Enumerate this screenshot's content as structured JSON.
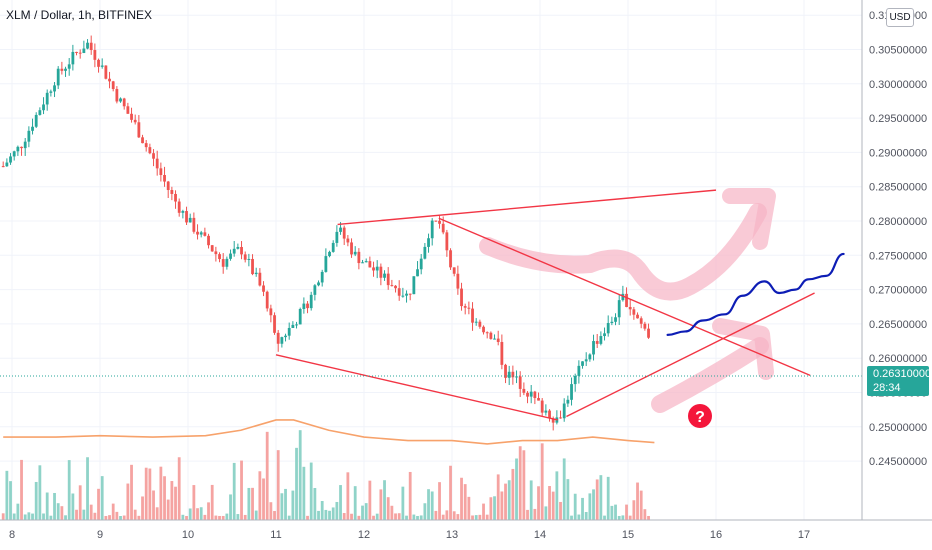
{
  "header": {
    "symbol_title": "XLM / Dollar, 1h, BITFINEX"
  },
  "price_axis": {
    "currency": "USD",
    "last_price": "0.26310000",
    "countdown": "28:34"
  },
  "annotations": {
    "question_mark": "?"
  },
  "colors": {
    "up": "#26a69a",
    "down": "#ef5350",
    "up_volume": "#8fd3c8",
    "down_volume": "#f5a3a1",
    "ma": "#f7a26b",
    "trendline": "#f23645",
    "projection": "#0d1db5",
    "arrow": "#f7b4c4"
  },
  "chart_data": {
    "type": "candlestick",
    "title": "XLM / Dollar, 1h, BITFINEX",
    "x_ticks": [
      "8",
      "9",
      "10",
      "11",
      "12",
      "13",
      "14",
      "15",
      "16",
      "17"
    ],
    "y_ticks": [
      "0.24500000",
      "0.25000000",
      "0.25500000",
      "0.26000000",
      "0.26500000",
      "0.27000000",
      "0.27500000",
      "0.28000000",
      "0.28500000",
      "0.29000000",
      "0.29500000",
      "0.30000000",
      "0.30500000",
      "0.31000000"
    ],
    "ylim": [
      0.2445,
      0.3115
    ],
    "close_path": [
      [
        7.9,
        0.288
      ],
      [
        8.1,
        0.291
      ],
      [
        8.3,
        0.296
      ],
      [
        8.5,
        0.301
      ],
      [
        8.7,
        0.304
      ],
      [
        8.85,
        0.306
      ],
      [
        9.0,
        0.303
      ],
      [
        9.2,
        0.298
      ],
      [
        9.4,
        0.294
      ],
      [
        9.6,
        0.289
      ],
      [
        9.8,
        0.284
      ],
      [
        10.0,
        0.28
      ],
      [
        10.2,
        0.277
      ],
      [
        10.4,
        0.274
      ],
      [
        10.6,
        0.276
      ],
      [
        10.8,
        0.271
      ],
      [
        10.9,
        0.268
      ],
      [
        11.0,
        0.262
      ],
      [
        11.2,
        0.265
      ],
      [
        11.4,
        0.269
      ],
      [
        11.6,
        0.276
      ],
      [
        11.7,
        0.279
      ],
      [
        11.9,
        0.275
      ],
      [
        12.1,
        0.273
      ],
      [
        12.3,
        0.271
      ],
      [
        12.5,
        0.269
      ],
      [
        12.6,
        0.273
      ],
      [
        12.75,
        0.279
      ],
      [
        12.85,
        0.28
      ],
      [
        12.95,
        0.275
      ],
      [
        13.1,
        0.268
      ],
      [
        13.3,
        0.265
      ],
      [
        13.5,
        0.263
      ],
      [
        13.6,
        0.258
      ],
      [
        13.8,
        0.256
      ],
      [
        14.0,
        0.253
      ],
      [
        14.2,
        0.251
      ],
      [
        14.4,
        0.257
      ],
      [
        14.6,
        0.262
      ],
      [
        14.8,
        0.265
      ],
      [
        14.95,
        0.269
      ],
      [
        15.1,
        0.266
      ],
      [
        15.25,
        0.2631
      ]
    ],
    "volume_ma_path": [
      [
        7.9,
        0.2485
      ],
      [
        8.5,
        0.2485
      ],
      [
        9.0,
        0.2487
      ],
      [
        9.6,
        0.2485
      ],
      [
        10.2,
        0.2487
      ],
      [
        10.6,
        0.2495
      ],
      [
        11.0,
        0.251
      ],
      [
        11.2,
        0.251
      ],
      [
        11.6,
        0.2495
      ],
      [
        12.0,
        0.2485
      ],
      [
        12.5,
        0.248
      ],
      [
        13.0,
        0.248
      ],
      [
        13.4,
        0.2475
      ],
      [
        13.8,
        0.248
      ],
      [
        14.2,
        0.248
      ],
      [
        14.6,
        0.2485
      ],
      [
        15.0,
        0.248
      ],
      [
        15.3,
        0.2477
      ]
    ],
    "trendlines": [
      {
        "from": [
          11.7,
          0.2795
        ],
        "to": [
          16.0,
          0.2845
        ]
      },
      {
        "from": [
          12.85,
          0.2804
        ],
        "to": [
          17.07,
          0.2575
        ]
      },
      {
        "from": [
          11.0,
          0.2605
        ],
        "to": [
          14.2,
          0.251
        ]
      },
      {
        "from": [
          14.3,
          0.2515
        ],
        "to": [
          17.12,
          0.2695
        ]
      }
    ],
    "projection_path": [
      [
        15.45,
        0.2634
      ],
      [
        15.65,
        0.2639
      ],
      [
        15.85,
        0.2655
      ],
      [
        16.1,
        0.2664
      ],
      [
        16.3,
        0.2691
      ],
      [
        16.55,
        0.2712
      ],
      [
        16.72,
        0.2695
      ],
      [
        16.9,
        0.27
      ],
      [
        17.05,
        0.2715
      ],
      [
        17.25,
        0.272
      ],
      [
        17.45,
        0.2752
      ]
    ]
  }
}
